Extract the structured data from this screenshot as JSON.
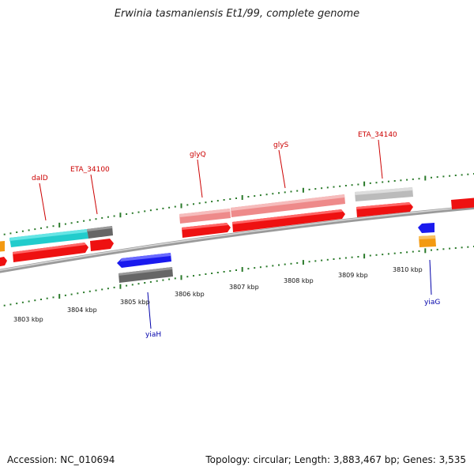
{
  "title": "Erwinia tasmaniensis Et1/99, complete genome",
  "footer": {
    "accession": "Accession: NC_010694",
    "summary": "Topology: circular; Length: 3,883,467 bp; Genes: 3,535"
  },
  "axis_ticks": [
    "3803 kbp",
    "3804 kbp",
    "3805 kbp",
    "3806 kbp",
    "3807 kbp",
    "3808 kbp",
    "3809 kbp",
    "3810 kbp"
  ],
  "gene_labels": {
    "dalD": "dalD",
    "ETA_34100": "ETA_34100",
    "glyQ": "glyQ",
    "glyS": "glyS",
    "ETA_34140": "ETA_34140",
    "yiaH": "yiaH",
    "yiaG": "yiaG"
  },
  "colors": {
    "forward_label": "#cc0000",
    "reverse_label": "#0000aa",
    "tick_green": "#2a7a2a",
    "backbone": "#8a8a8a",
    "cds_red": "#ee1111",
    "rna_pink": "#ee8a8a",
    "gene_cyan": "#22cccc",
    "gene_gray": "#666666",
    "gene_light_gray": "#bbbbbb",
    "gene_blue": "#1a1aee",
    "gene_orange": "#f39a12"
  }
}
